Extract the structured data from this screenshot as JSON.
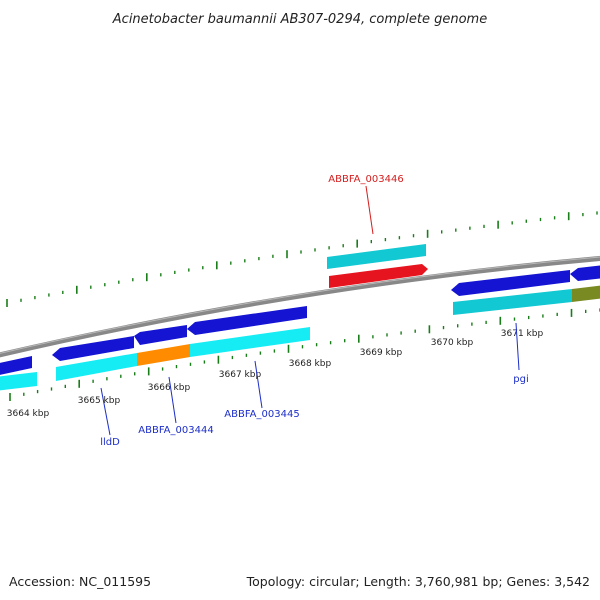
{
  "title": "Acinetobacter baumannii AB307-0294, complete genome",
  "footer": {
    "accession": "Accession: NC_011595",
    "summary": "Topology: circular; Length: 3,760,981 bp; Genes: 3,542"
  },
  "ticks": [
    "3664 kbp",
    "3665 kbp",
    "3666 kbp",
    "3667 kbp",
    "3668 kbp",
    "3669 kbp",
    "3670 kbp",
    "3671 kbp"
  ],
  "gene_labels": {
    "abbfa_003446": "ABBFA_003446",
    "lldd": "lldD",
    "abbfa_003444": "ABBFA_003444",
    "abbfa_003445": "ABBFA_003445",
    "pgi": "pgi"
  },
  "colors": {
    "backbone": "#808080",
    "cds_blue": "#1414d2",
    "cds_cyan": "#12d7e0",
    "cds_cyan_light": "#16ecf4",
    "cds_orange": "#ff8c00",
    "cds_red": "#e6141e",
    "cds_olive": "#7a8a22",
    "tick_green": "#197d19",
    "label_blue": "#1c2ec8",
    "label_red": "#d41e1e"
  }
}
